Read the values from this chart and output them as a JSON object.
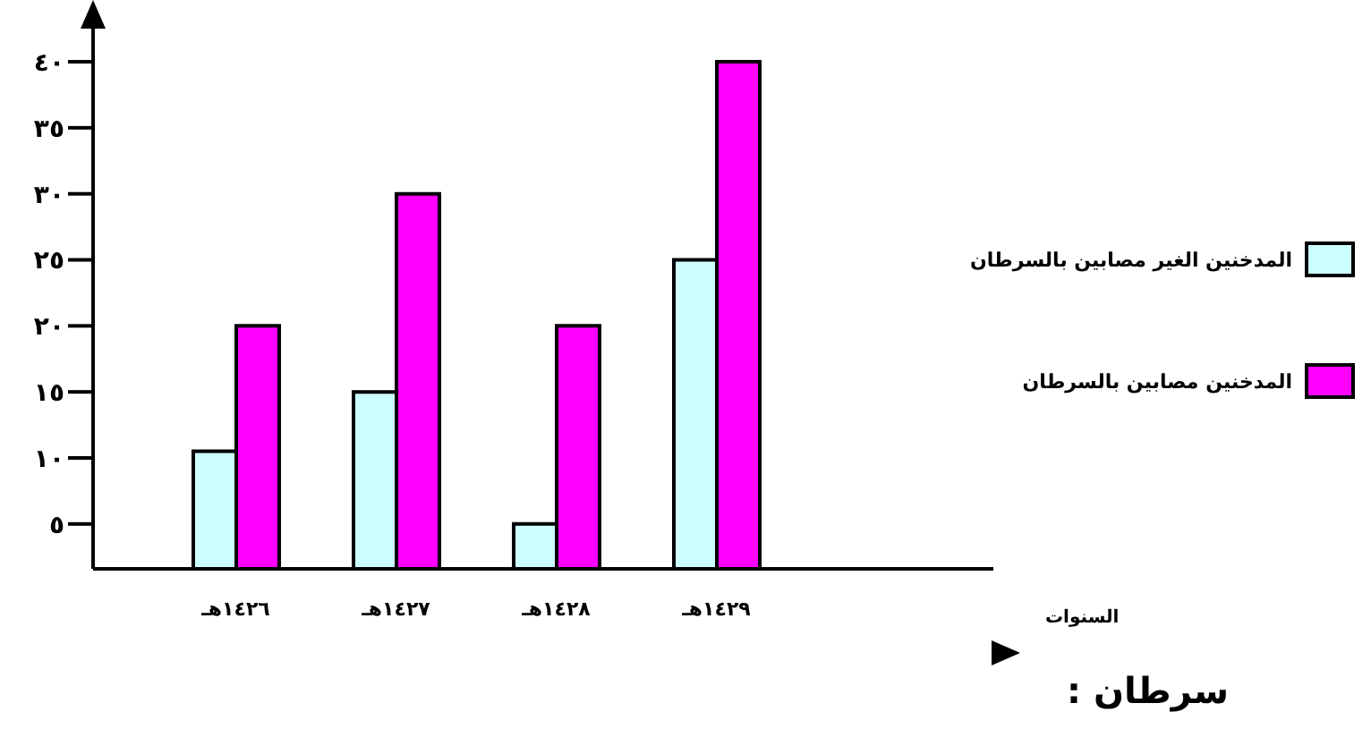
{
  "chart_data": {
    "type": "bar",
    "annotations": [
      "السنوات",
      "سرطان :"
    ],
    "categories": [
      "١٤٢٦هـ",
      "١٤٢٧هـ",
      "١٤٢٨هـ",
      "١٤٢٩هـ"
    ],
    "series": [
      {
        "name": "المدخنين الغير مصابين بالسرطان",
        "color": "#ccffff",
        "values": [
          10.5,
          15,
          5,
          25
        ]
      },
      {
        "name": "المدخنين مصابين بالسرطان",
        "color": "#ff00ff",
        "values": [
          20,
          30,
          20,
          40
        ]
      }
    ],
    "ylim": [
      1.6,
      44
    ],
    "yticks": [
      {
        "value": 5,
        "label": "٥"
      },
      {
        "value": 10,
        "label": "١٠"
      },
      {
        "value": 15,
        "label": "١٥"
      },
      {
        "value": 20,
        "label": "٢٠"
      },
      {
        "value": 25,
        "label": "٢٥"
      },
      {
        "value": 30,
        "label": "٣٠"
      },
      {
        "value": 35,
        "label": "٣٥"
      },
      {
        "value": 40,
        "label": "٤٠"
      }
    ],
    "grid": false,
    "legend": "right"
  }
}
